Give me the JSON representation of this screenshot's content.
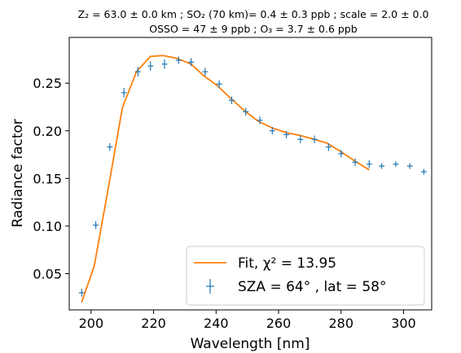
{
  "chart_data": {
    "type": "line",
    "title": "Z₂ = 63.0 ± 0.0 km ; SO₂ (70 km)= 0.4 ± 0.3 ppb ; scale = 2.0 ± 0.0",
    "subtitle": "OSSO = 47 ± 9 ppb ; O₃ = 3.7 ± 0.6 ppb",
    "xlabel": "Wavelength [nm]",
    "ylabel": "Radiance factor",
    "xlim": [
      193,
      309
    ],
    "ylim": [
      0.012,
      0.298
    ],
    "xticks": [
      200,
      220,
      240,
      260,
      280,
      300
    ],
    "yticks": [
      0.05,
      0.1,
      0.15,
      0.2,
      0.25
    ],
    "ytick_labels": [
      "0.05",
      "0.10",
      "0.15",
      "0.20",
      "0.25"
    ],
    "legend_position": "lower-right",
    "grid": false,
    "series": [
      {
        "name": "Fit, χ² = 13.95",
        "legend_math": "Fit, χ² = 13.95",
        "kind": "line",
        "color": "#ff7f0e",
        "x": [
          197.0,
          201.0,
          205.5,
          210.0,
          214.5,
          219.0,
          223.0,
          227.5,
          232.0,
          236.0,
          240.5,
          245.0,
          249.5,
          253.5,
          258.0,
          262.5,
          267.0,
          271.5,
          275.5,
          280.0,
          284.5,
          289.0
        ],
        "y": [
          0.02,
          0.058,
          0.14,
          0.224,
          0.262,
          0.278,
          0.279,
          0.276,
          0.27,
          0.258,
          0.247,
          0.233,
          0.22,
          0.21,
          0.203,
          0.198,
          0.195,
          0.191,
          0.187,
          0.178,
          0.168,
          0.159
        ]
      },
      {
        "name": "SZA = 64° , lat = 58°",
        "legend_math": "SZA = 64° , lat = 58°",
        "kind": "errorbar",
        "color": "#1f77b4",
        "x": [
          197.0,
          201.5,
          206.0,
          210.5,
          215.0,
          219.0,
          223.5,
          228.0,
          232.0,
          236.5,
          241.0,
          245.0,
          249.5,
          254.0,
          258.0,
          262.5,
          267.0,
          271.5,
          276.0,
          280.0,
          284.5,
          289.0,
          293.0,
          297.5,
          302.0,
          306.5
        ],
        "y": [
          0.03,
          0.101,
          0.183,
          0.24,
          0.262,
          0.268,
          0.27,
          0.274,
          0.272,
          0.262,
          0.249,
          0.232,
          0.22,
          0.211,
          0.2,
          0.196,
          0.191,
          0.191,
          0.183,
          0.176,
          0.167,
          0.165,
          0.163,
          0.165,
          0.163,
          0.157
        ],
        "yerr": [
          0.004,
          0.004,
          0.004,
          0.005,
          0.005,
          0.005,
          0.005,
          0.004,
          0.004,
          0.004,
          0.004,
          0.004,
          0.004,
          0.004,
          0.004,
          0.004,
          0.004,
          0.004,
          0.004,
          0.004,
          0.004,
          0.004,
          0.003,
          0.003,
          0.003,
          0.003
        ]
      }
    ]
  }
}
